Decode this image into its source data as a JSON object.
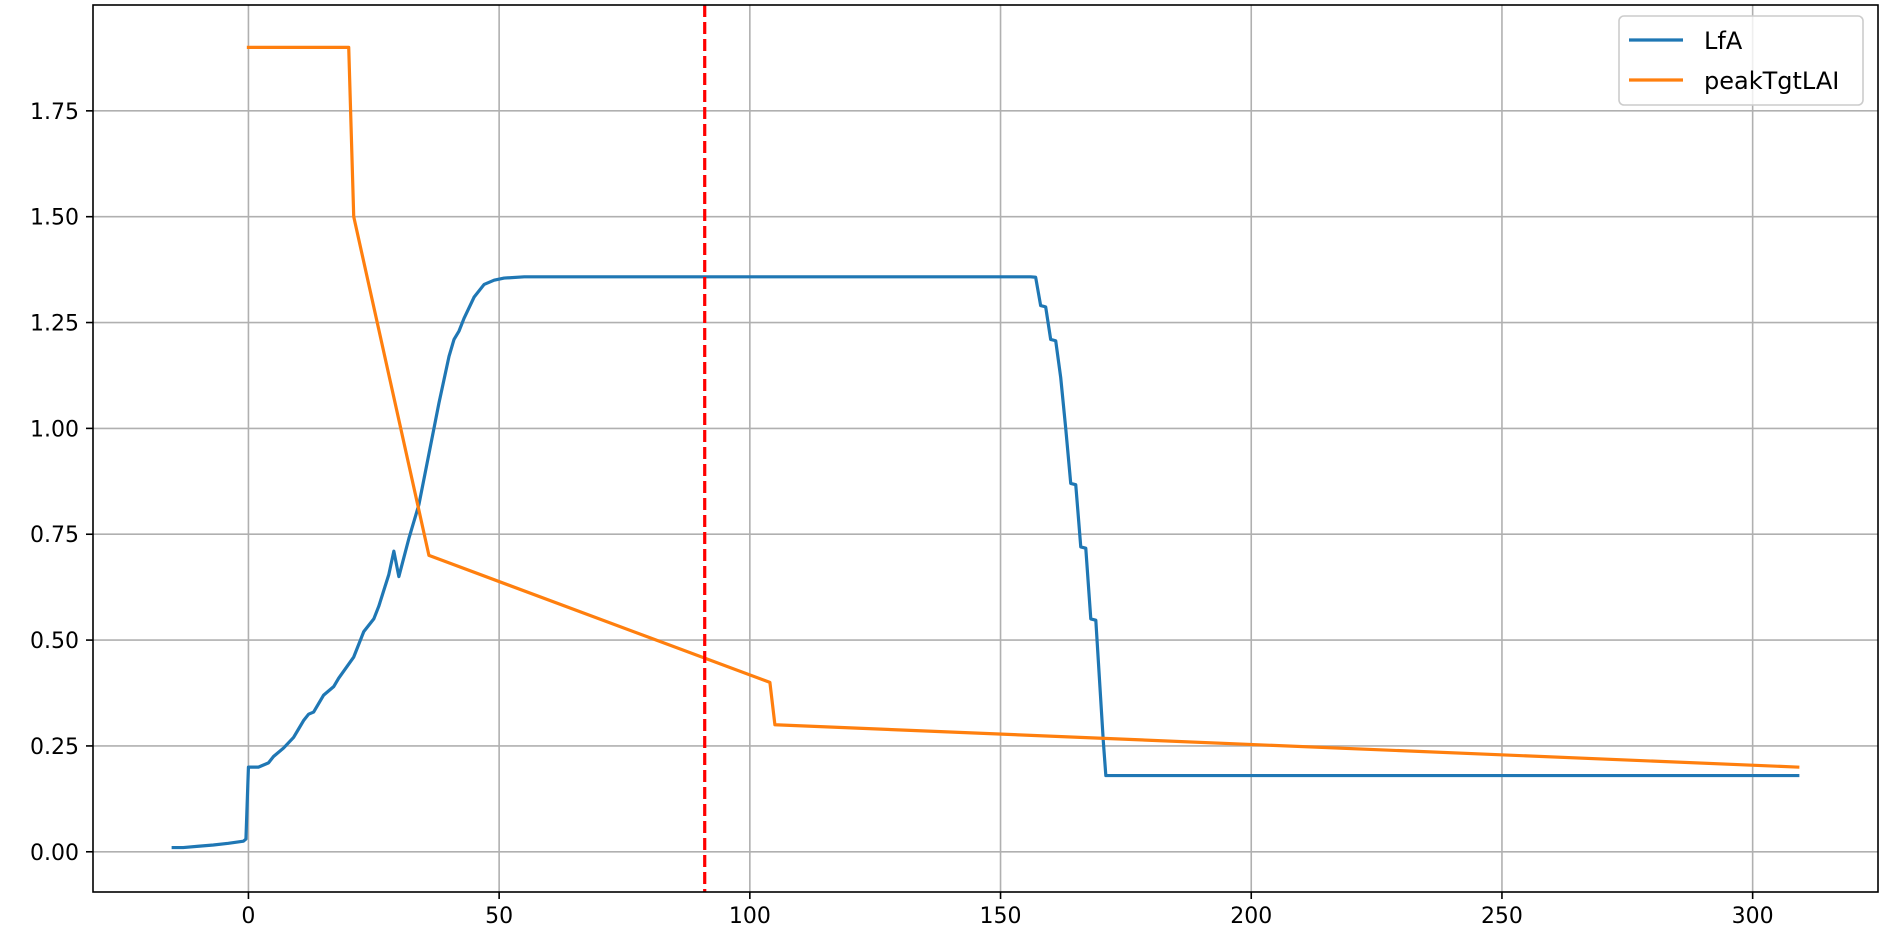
{
  "chart_data": {
    "type": "line",
    "title": "",
    "xlabel": "",
    "ylabel": "",
    "xlim": [
      -31,
      325
    ],
    "ylim": [
      -0.095,
      2.0
    ],
    "x_ticks": [
      0,
      50,
      100,
      150,
      200,
      250,
      300
    ],
    "x_tick_labels": [
      "0",
      "50",
      "100",
      "150",
      "200",
      "250",
      "300"
    ],
    "y_ticks": [
      0.0,
      0.25,
      0.5,
      0.75,
      1.0,
      1.25,
      1.5,
      1.75
    ],
    "y_tick_labels": [
      "0.00",
      "0.25",
      "0.50",
      "0.75",
      "1.00",
      "1.25",
      "1.50",
      "1.75"
    ],
    "grid": true,
    "legend_position": "top-right",
    "vertical_line": {
      "x": 91,
      "color": "#ff0000",
      "style": "dashed"
    },
    "series": [
      {
        "name": "LfA",
        "color": "#1f77b4",
        "points": [
          [
            -15,
            0.01
          ],
          [
            -13,
            0.01
          ],
          [
            -10,
            0.013
          ],
          [
            -7,
            0.016
          ],
          [
            -4,
            0.02
          ],
          [
            -1,
            0.025
          ],
          [
            -0.5,
            0.03
          ],
          [
            0,
            0.2
          ],
          [
            2,
            0.2
          ],
          [
            3,
            0.205
          ],
          [
            4,
            0.21
          ],
          [
            5,
            0.225
          ],
          [
            7,
            0.245
          ],
          [
            9,
            0.27
          ],
          [
            10,
            0.29
          ],
          [
            11,
            0.31
          ],
          [
            12,
            0.325
          ],
          [
            13,
            0.33
          ],
          [
            15,
            0.37
          ],
          [
            17,
            0.39
          ],
          [
            18,
            0.41
          ],
          [
            21,
            0.46
          ],
          [
            23,
            0.52
          ],
          [
            25,
            0.55
          ],
          [
            26,
            0.58
          ],
          [
            28,
            0.655
          ],
          [
            29,
            0.71
          ],
          [
            30,
            0.65
          ],
          [
            32,
            0.74
          ],
          [
            34,
            0.82
          ],
          [
            36,
            0.94
          ],
          [
            38,
            1.06
          ],
          [
            40,
            1.17
          ],
          [
            41,
            1.21
          ],
          [
            42,
            1.23
          ],
          [
            43,
            1.26
          ],
          [
            45,
            1.31
          ],
          [
            47,
            1.34
          ],
          [
            49,
            1.35
          ],
          [
            51,
            1.355
          ],
          [
            55,
            1.358
          ],
          [
            100,
            1.358
          ],
          [
            156,
            1.358
          ],
          [
            157,
            1.357
          ],
          [
            158,
            1.29
          ],
          [
            159,
            1.287
          ],
          [
            160,
            1.21
          ],
          [
            161,
            1.207
          ],
          [
            162,
            1.12
          ],
          [
            163,
            1.0
          ],
          [
            164,
            0.87
          ],
          [
            165,
            0.867
          ],
          [
            166,
            0.72
          ],
          [
            167,
            0.717
          ],
          [
            168,
            0.55
          ],
          [
            169,
            0.547
          ],
          [
            170.5,
            0.26
          ],
          [
            171,
            0.18
          ],
          [
            200,
            0.18
          ],
          [
            250,
            0.18
          ],
          [
            309,
            0.18
          ]
        ]
      },
      {
        "name": "peakTgtLAI",
        "color": "#ff7f0e",
        "points": [
          [
            0,
            1.9
          ],
          [
            20,
            1.9
          ],
          [
            21,
            1.5
          ],
          [
            36,
            0.7
          ],
          [
            104,
            0.4
          ],
          [
            105,
            0.3
          ],
          [
            309,
            0.2
          ]
        ]
      }
    ]
  }
}
